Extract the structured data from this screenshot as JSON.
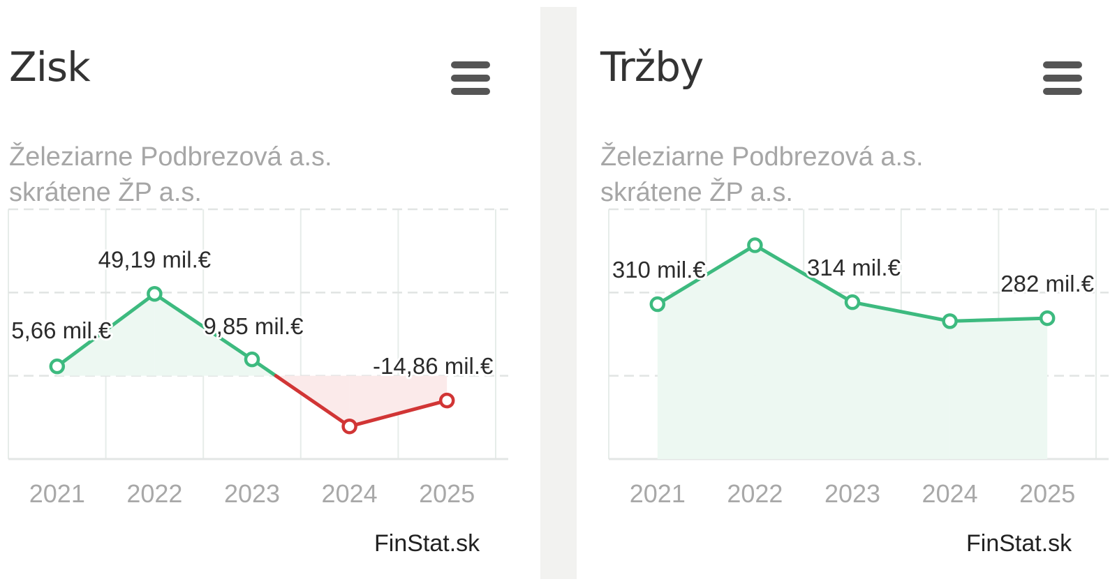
{
  "charts": [
    {
      "title": "Zisk",
      "subtitle_line1": "Železiarne Podbrezová a.s.",
      "subtitle_line2": "skrátene ŽP a.s.",
      "credit": "FinStat.sk",
      "menu_icon": "hamburger-menu-icon"
    },
    {
      "title": "Tržby",
      "subtitle_line1": "Železiarne Podbrezová a.s.",
      "subtitle_line2": "skrátene ŽP a.s.",
      "credit": "FinStat.sk",
      "menu_icon": "hamburger-menu-icon"
    }
  ],
  "chart_data": [
    {
      "type": "area",
      "title": "Zisk",
      "subtitle": "Železiarne Podbrezová a.s. skrátene ŽP a.s.",
      "categories": [
        "2021",
        "2022",
        "2023",
        "2024",
        "2025"
      ],
      "values": [
        5.66,
        49.19,
        9.85,
        -30.4,
        -14.86
      ],
      "data_labels": [
        "5,66 mil.€",
        "49,19 mil.€",
        "9,85 mil.€",
        "",
        "-14,86 mil.€"
      ],
      "unit": "mil.€",
      "ylim": [
        -50,
        100
      ],
      "grid": true,
      "legend": "none",
      "colors": {
        "positive": "#3dba7f",
        "negative": "#d13535",
        "positive_fill": "#edf8f2",
        "negative_fill": "#fbeaea",
        "grid": "#e6ece9"
      }
    },
    {
      "type": "area",
      "title": "Tržby",
      "subtitle": "Železiarne Podbrezová a.s. skrátene ŽP a.s.",
      "categories": [
        "2021",
        "2022",
        "2023",
        "2024",
        "2025"
      ],
      "values": [
        310,
        428,
        314,
        276,
        282
      ],
      "data_labels": [
        "310 mil.€",
        "",
        "314 mil.€",
        "",
        "282 mil.€"
      ],
      "unit": "mil.€",
      "ylim": [
        0,
        500
      ],
      "grid": true,
      "legend": "none",
      "colors": {
        "positive": "#3dba7f",
        "negative": "#d13535",
        "positive_fill": "#edf8f2",
        "negative_fill": "#fbeaea",
        "grid": "#e6ece9"
      }
    }
  ]
}
